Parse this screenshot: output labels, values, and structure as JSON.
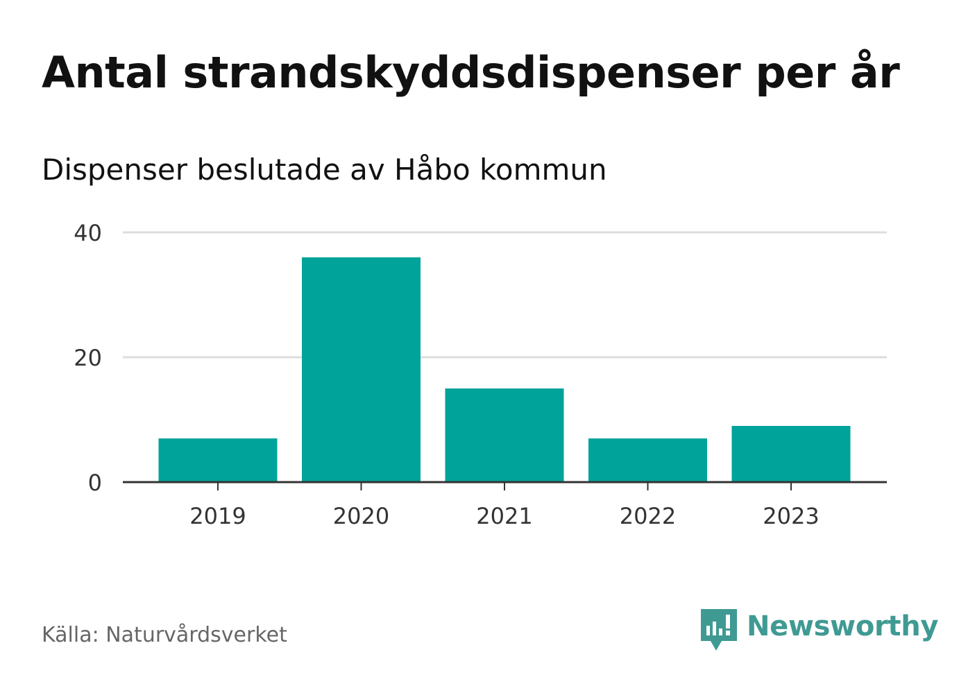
{
  "header": {
    "title": "Antal strandskyddsdispenser per år",
    "subtitle": "Dispenser beslutade av Håbo kommun"
  },
  "footer": {
    "source": "Källa: Naturvårdsverket",
    "brand": "Newsworthy"
  },
  "colors": {
    "bar": "#00a39a",
    "grid": "#dddddd",
    "axis": "#333333",
    "tick_text": "#333333",
    "brand": "#3f9a93"
  },
  "icons": {
    "brand_logo": "newsworthy-logo-icon"
  },
  "chart_data": {
    "type": "bar",
    "title": "Antal strandskyddsdispenser per år",
    "subtitle": "Dispenser beslutade av Håbo kommun",
    "xlabel": "",
    "ylabel": "",
    "categories": [
      "2019",
      "2020",
      "2021",
      "2022",
      "2023"
    ],
    "values": [
      7,
      36,
      15,
      7,
      9
    ],
    "ylim": [
      0,
      40
    ],
    "yticks": [
      0,
      20,
      40
    ],
    "grid": true,
    "legend": "none"
  }
}
